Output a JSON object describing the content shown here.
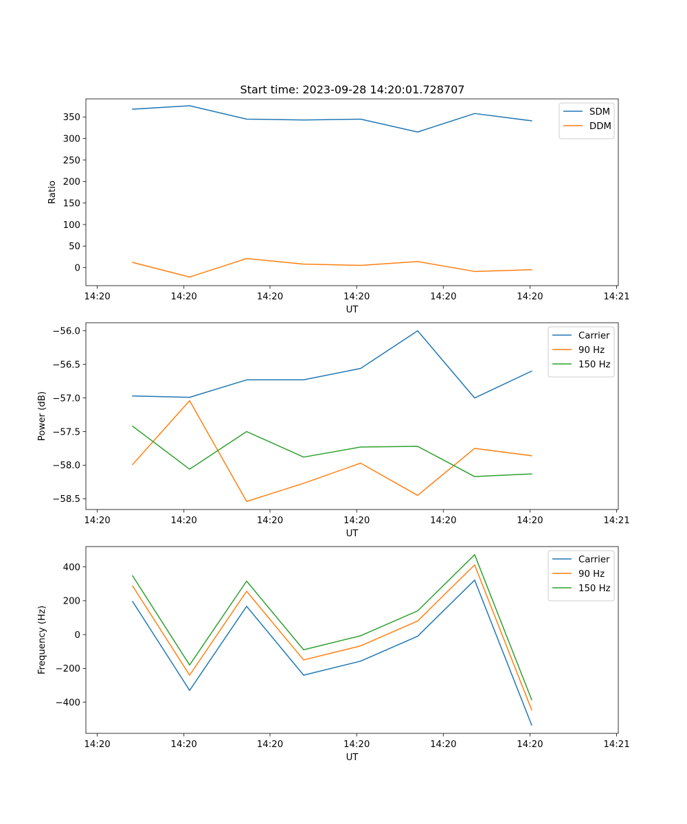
{
  "figure": {
    "title": "Start time: 2023-09-28 14:20:01.728707"
  },
  "colors": {
    "blue": "#1f77b4",
    "orange": "#ff7f0e",
    "green": "#2ca02c"
  },
  "chart_data": [
    {
      "type": "line",
      "title": "Start time: 2023-09-28 14:20:01.728707",
      "xlabel": "UT",
      "ylabel": "Ratio",
      "x": [
        1,
        2,
        3,
        4,
        5,
        6,
        7,
        8
      ],
      "xlim": [
        0.18,
        9.52
      ],
      "ylim": [
        -42,
        392
      ],
      "xticks": [
        0.38,
        1.9,
        3.41,
        4.93,
        6.45,
        7.97,
        9.49
      ],
      "xtick_labels": [
        "14:20",
        "14:20",
        "14:20",
        "14:20",
        "14:20",
        "14:20",
        "14:21"
      ],
      "yticks": [
        0,
        50,
        100,
        150,
        200,
        250,
        300,
        350
      ],
      "ytick_labels": [
        "0",
        "50",
        "100",
        "150",
        "200",
        "250",
        "300",
        "350"
      ],
      "legend": "top-right",
      "series": [
        {
          "name": "SDM",
          "color": "#1f77b4",
          "values": [
            368,
            376,
            345,
            343,
            345,
            315,
            358,
            341
          ]
        },
        {
          "name": "DDM",
          "color": "#ff7f0e",
          "values": [
            12,
            -22,
            21,
            8,
            5,
            14,
            -9,
            -5
          ]
        }
      ]
    },
    {
      "type": "line",
      "title": "",
      "xlabel": "UT",
      "ylabel": "Power (dB)",
      "x": [
        1,
        2,
        3,
        4,
        5,
        6,
        7,
        8
      ],
      "xlim": [
        0.18,
        9.52
      ],
      "ylim": [
        -58.66,
        -55.88
      ],
      "xticks": [
        0.38,
        1.9,
        3.41,
        4.93,
        6.45,
        7.97,
        9.49
      ],
      "xtick_labels": [
        "14:20",
        "14:20",
        "14:20",
        "14:20",
        "14:20",
        "14:20",
        "14:21"
      ],
      "yticks": [
        -56.0,
        -56.5,
        -57.0,
        -57.5,
        -58.0,
        -58.5
      ],
      "ytick_labels": [
        "−56.0",
        "−56.5",
        "−57.0",
        "−57.5",
        "−58.0",
        "−58.5"
      ],
      "legend": "top-right",
      "series": [
        {
          "name": "Carrier",
          "color": "#1f77b4",
          "values": [
            -56.97,
            -56.99,
            -56.73,
            -56.73,
            -56.56,
            -56.0,
            -57.0,
            -56.6
          ]
        },
        {
          "name": "90 Hz",
          "color": "#ff7f0e",
          "values": [
            -57.99,
            -57.04,
            -58.54,
            -58.27,
            -57.97,
            -58.45,
            -57.75,
            -57.86
          ]
        },
        {
          "name": "150 Hz",
          "color": "#2ca02c",
          "values": [
            -57.42,
            -58.06,
            -57.5,
            -57.88,
            -57.73,
            -57.72,
            -58.17,
            -58.13
          ]
        }
      ]
    },
    {
      "type": "line",
      "title": "",
      "xlabel": "UT",
      "ylabel": "Frequency (Hz)",
      "x": [
        1,
        2,
        3,
        4,
        5,
        6,
        7,
        8
      ],
      "xlim": [
        0.18,
        9.52
      ],
      "ylim": [
        -584,
        520
      ],
      "xticks": [
        0.38,
        1.9,
        3.41,
        4.93,
        6.45,
        7.97,
        9.49
      ],
      "xtick_labels": [
        "14:20",
        "14:20",
        "14:20",
        "14:20",
        "14:20",
        "14:20",
        "14:21"
      ],
      "yticks": [
        -400,
        -200,
        0,
        200,
        400
      ],
      "ytick_labels": [
        "−400",
        "−200",
        "0",
        "200",
        "400"
      ],
      "legend": "top-right",
      "series": [
        {
          "name": "Carrier",
          "color": "#1f77b4",
          "values": [
            195,
            -330,
            167,
            -240,
            -157,
            -10,
            322,
            -535
          ]
        },
        {
          "name": "90 Hz",
          "color": "#ff7f0e",
          "values": [
            287,
            -240,
            256,
            -150,
            -67,
            80,
            412,
            -445
          ]
        },
        {
          "name": "150 Hz",
          "color": "#2ca02c",
          "values": [
            347,
            -180,
            316,
            -90,
            -7,
            140,
            472,
            -385
          ]
        }
      ]
    }
  ]
}
